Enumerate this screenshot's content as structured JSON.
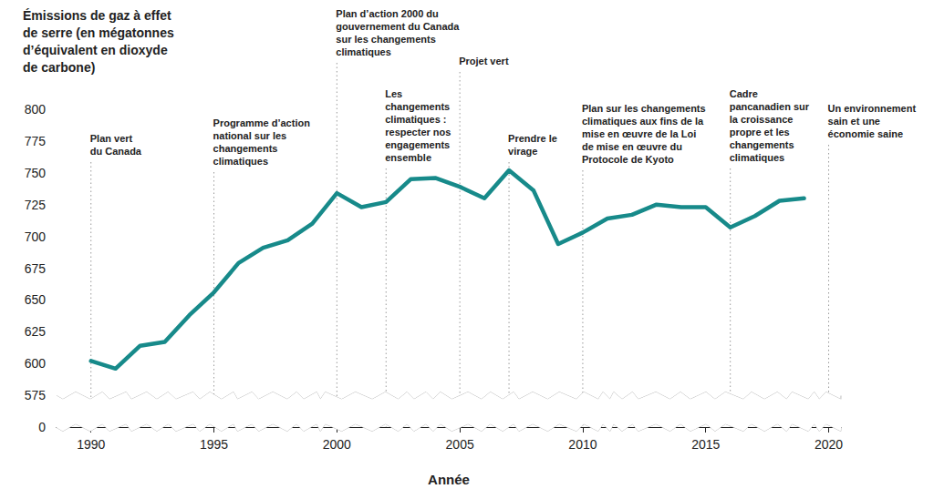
{
  "chart_data": {
    "type": "line",
    "y_title": "Émissions de gaz à effet\nde serre (en mégatonnes\nd’équivalent en dioxyde\nde carbone)",
    "x_title": "Année",
    "x": [
      1990,
      1991,
      1992,
      1993,
      1994,
      1995,
      1996,
      1997,
      1998,
      1999,
      2000,
      2001,
      2002,
      2003,
      2004,
      2005,
      2006,
      2007,
      2008,
      2009,
      2010,
      2011,
      2012,
      2013,
      2014,
      2015,
      2016,
      2017,
      2018,
      2019
    ],
    "values": [
      602,
      596,
      614,
      617,
      638,
      656,
      679,
      691,
      697,
      710,
      734,
      723,
      727,
      745,
      746,
      739,
      730,
      752,
      736,
      694,
      703,
      714,
      717,
      725,
      723,
      723,
      707,
      716,
      728,
      730
    ],
    "color": "#178a8a",
    "xlim": [
      1988.6,
      2020.5
    ],
    "xticks": [
      1990,
      1995,
      2000,
      2005,
      2010,
      2015,
      2020
    ],
    "ylim": [
      0,
      800
    ],
    "yticks": [
      0,
      575,
      600,
      625,
      650,
      675,
      700,
      725,
      750,
      775,
      800
    ],
    "y_break": [
      0,
      575
    ],
    "grid": false,
    "annotations": [
      {
        "x": 1990,
        "label": "Plan vert\ndu Canada"
      },
      {
        "x": 1995,
        "label": "Programme d’action\nnational sur les\nchangements\nclimatiques"
      },
      {
        "x": 2000,
        "label": "Plan d’action 2000 du\ngouvernement du Canada\nsur les changements\nclimatiques"
      },
      {
        "x": 2002,
        "label": "Les\nchangements\nclimatiques :\nrespecter nos\nengagements\nensemble"
      },
      {
        "x": 2005,
        "label": "Projet vert"
      },
      {
        "x": 2007,
        "label": "Prendre le\nvirage"
      },
      {
        "x": 2010,
        "label": "Plan sur les changements\nclimatiques aux fins de la\nmise en œuvre de la Loi\nde mise en œuvre du\nProtocole de Kyoto"
      },
      {
        "x": 2016,
        "label": "Cadre\npancanadien sur\nla croissance\npropre et les\nchangements\nclimatiques"
      },
      {
        "x": 2020,
        "label": "Un environnement\nsain et une\néconomie saine"
      }
    ]
  }
}
